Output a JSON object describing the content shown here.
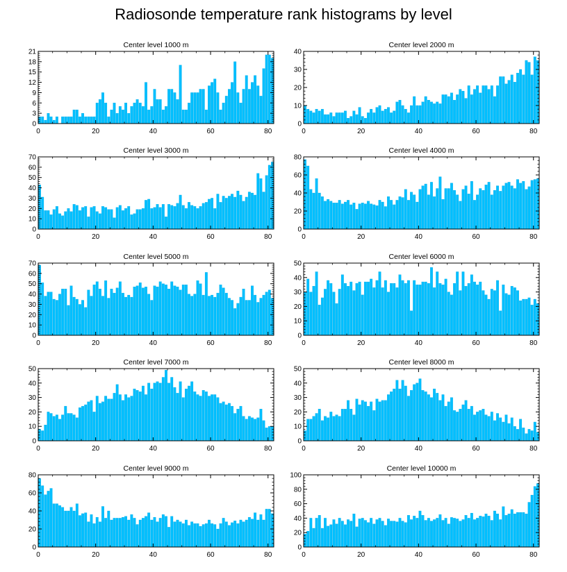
{
  "title": "Radiosonde temperature rank histograms by level",
  "colors": {
    "bar": "#00BFFF",
    "bar_edge": "#00A6E0",
    "axis": "#000000"
  },
  "chart_data": [
    {
      "type": "bar",
      "title": "Center level 1000 m",
      "xlabel": "",
      "ylabel": "",
      "xlim": [
        0,
        82
      ],
      "ylim": [
        0,
        21
      ],
      "yticks": [
        0,
        3,
        6,
        9,
        12,
        15,
        18,
        21
      ],
      "xticks": [
        0,
        20,
        40,
        60,
        80
      ],
      "values": [
        2,
        2,
        1,
        3,
        2,
        1,
        2,
        0,
        2,
        2,
        2,
        2,
        4,
        4,
        2,
        3,
        2,
        2,
        2,
        2,
        6,
        7,
        9,
        6,
        2,
        4,
        6,
        3,
        5,
        4,
        6,
        3,
        5,
        6,
        7,
        6,
        5,
        12,
        4,
        5,
        10,
        7,
        7,
        4,
        5,
        10,
        10,
        9,
        7,
        17,
        4,
        4,
        6,
        9,
        9,
        9,
        10,
        10,
        4,
        11,
        12,
        13,
        9,
        4,
        6,
        8,
        10,
        12,
        18,
        9,
        6,
        10,
        14,
        10,
        12,
        14,
        11,
        8,
        16,
        20,
        20,
        19
      ]
    },
    {
      "type": "bar",
      "title": "Center level 2000 m",
      "xlabel": "",
      "ylabel": "",
      "xlim": [
        0,
        82
      ],
      "ylim": [
        0,
        40
      ],
      "yticks": [
        0,
        10,
        20,
        30,
        40
      ],
      "xticks": [
        0,
        20,
        40,
        60,
        80
      ],
      "values": [
        10,
        8,
        7,
        6,
        8,
        7,
        8,
        5,
        5,
        6,
        4,
        6,
        6,
        6,
        7,
        3,
        4,
        7,
        5,
        9,
        4,
        3,
        6,
        8,
        6,
        9,
        10,
        7,
        8,
        9,
        6,
        7,
        12,
        13,
        10,
        8,
        6,
        10,
        15,
        10,
        10,
        12,
        15,
        13,
        12,
        11,
        12,
        11,
        16,
        16,
        15,
        17,
        13,
        16,
        19,
        18,
        14,
        21,
        16,
        19,
        21,
        17,
        21,
        21,
        19,
        21,
        15,
        21,
        26,
        26,
        22,
        24,
        27,
        23,
        28,
        30,
        27,
        35,
        34,
        27,
        37,
        35
      ]
    },
    {
      "type": "bar",
      "title": "Center level 3000 m",
      "xlabel": "",
      "ylabel": "",
      "xlim": [
        0,
        82
      ],
      "ylim": [
        0,
        70
      ],
      "yticks": [
        0,
        10,
        20,
        30,
        40,
        50,
        60,
        70
      ],
      "xticks": [
        0,
        20,
        40,
        60,
        80
      ],
      "values": [
        43,
        31,
        18,
        18,
        14,
        19,
        22,
        15,
        13,
        17,
        20,
        17,
        24,
        23,
        18,
        21,
        22,
        12,
        21,
        22,
        17,
        15,
        22,
        21,
        19,
        19,
        11,
        21,
        23,
        18,
        20,
        22,
        14,
        15,
        19,
        19,
        20,
        28,
        29,
        20,
        21,
        24,
        21,
        24,
        12,
        24,
        23,
        22,
        25,
        33,
        23,
        20,
        26,
        23,
        22,
        20,
        22,
        25,
        26,
        29,
        30,
        20,
        34,
        26,
        32,
        30,
        32,
        34,
        31,
        37,
        33,
        27,
        31,
        36,
        35,
        33,
        54,
        49,
        36,
        52,
        62,
        65
      ]
    },
    {
      "type": "bar",
      "title": "Center level 4000 m",
      "xlabel": "",
      "ylabel": "",
      "xlim": [
        0,
        82
      ],
      "ylim": [
        0,
        80
      ],
      "yticks": [
        0,
        20,
        40,
        60,
        80
      ],
      "xticks": [
        0,
        20,
        40,
        60,
        80
      ],
      "values": [
        77,
        70,
        44,
        40,
        56,
        40,
        36,
        31,
        33,
        31,
        29,
        29,
        32,
        28,
        30,
        32,
        27,
        29,
        22,
        28,
        29,
        28,
        31,
        28,
        27,
        26,
        32,
        30,
        25,
        36,
        32,
        27,
        32,
        36,
        35,
        44,
        32,
        41,
        38,
        30,
        44,
        48,
        50,
        38,
        52,
        36,
        45,
        58,
        33,
        45,
        45,
        51,
        43,
        38,
        31,
        44,
        48,
        39,
        53,
        32,
        38,
        45,
        43,
        49,
        52,
        38,
        43,
        48,
        42,
        48,
        51,
        52,
        48,
        45,
        55,
        51,
        53,
        44,
        47,
        54,
        55,
        56
      ]
    },
    {
      "type": "bar",
      "title": "Center level 5000 m",
      "xlabel": "",
      "ylabel": "",
      "xlim": [
        0,
        82
      ],
      "ylim": [
        0,
        70
      ],
      "yticks": [
        0,
        10,
        20,
        30,
        40,
        50,
        60,
        70
      ],
      "xticks": [
        0,
        20,
        40,
        60,
        80
      ],
      "values": [
        68,
        51,
        38,
        42,
        42,
        35,
        34,
        40,
        45,
        45,
        29,
        48,
        37,
        35,
        30,
        34,
        27,
        44,
        38,
        49,
        52,
        45,
        38,
        53,
        36,
        45,
        41,
        46,
        52,
        41,
        37,
        39,
        37,
        47,
        48,
        51,
        46,
        47,
        40,
        34,
        48,
        47,
        52,
        50,
        49,
        45,
        52,
        48,
        47,
        44,
        49,
        49,
        40,
        38,
        40,
        53,
        50,
        39,
        61,
        38,
        39,
        37,
        41,
        49,
        46,
        41,
        36,
        34,
        26,
        31,
        37,
        45,
        34,
        34,
        48,
        39,
        32,
        36,
        39,
        42,
        44,
        36
      ]
    },
    {
      "type": "bar",
      "title": "Center level 6000 m",
      "xlabel": "",
      "ylabel": "",
      "xlim": [
        0,
        82
      ],
      "ylim": [
        0,
        50
      ],
      "yticks": [
        0,
        10,
        20,
        30,
        40,
        50
      ],
      "xticks": [
        0,
        20,
        40,
        60,
        80
      ],
      "values": [
        30,
        39,
        30,
        34,
        44,
        21,
        26,
        32,
        38,
        36,
        30,
        22,
        32,
        42,
        36,
        34,
        37,
        31,
        36,
        37,
        28,
        37,
        37,
        39,
        33,
        38,
        44,
        33,
        38,
        30,
        36,
        36,
        33,
        42,
        38,
        36,
        38,
        17,
        38,
        35,
        35,
        37,
        37,
        36,
        47,
        33,
        44,
        36,
        35,
        39,
        30,
        28,
        36,
        44,
        31,
        44,
        34,
        36,
        42,
        37,
        35,
        37,
        31,
        28,
        25,
        32,
        31,
        38,
        17,
        35,
        29,
        28,
        34,
        33,
        31,
        24,
        25,
        25,
        26,
        21,
        25,
        22
      ]
    },
    {
      "type": "bar",
      "title": "Center level 7000 m",
      "xlabel": "",
      "ylabel": "",
      "xlim": [
        0,
        82
      ],
      "ylim": [
        0,
        50
      ],
      "yticks": [
        0,
        10,
        20,
        30,
        40,
        50
      ],
      "xticks": [
        0,
        20,
        40,
        60,
        80
      ],
      "values": [
        8,
        7,
        11,
        20,
        19,
        17,
        18,
        15,
        18,
        24,
        19,
        19,
        18,
        16,
        23,
        24,
        25,
        27,
        28,
        20,
        31,
        26,
        27,
        31,
        29,
        29,
        33,
        39,
        32,
        28,
        32,
        30,
        31,
        36,
        35,
        34,
        38,
        32,
        40,
        36,
        40,
        41,
        40,
        44,
        49,
        40,
        44,
        37,
        33,
        41,
        30,
        36,
        38,
        41,
        34,
        32,
        31,
        35,
        34,
        31,
        32,
        32,
        30,
        26,
        27,
        25,
        26,
        24,
        19,
        22,
        24,
        17,
        15,
        17,
        16,
        15,
        16,
        22,
        14,
        9,
        10,
        10
      ]
    },
    {
      "type": "bar",
      "title": "Center level 8000 m",
      "xlabel": "",
      "ylabel": "",
      "xlim": [
        0,
        82
      ],
      "ylim": [
        0,
        50
      ],
      "yticks": [
        0,
        10,
        20,
        30,
        40,
        50
      ],
      "xticks": [
        0,
        20,
        40,
        60,
        80
      ],
      "values": [
        7,
        15,
        15,
        17,
        19,
        22,
        14,
        17,
        16,
        20,
        17,
        18,
        17,
        22,
        22,
        28,
        22,
        18,
        29,
        25,
        28,
        27,
        24,
        27,
        21,
        29,
        27,
        28,
        28,
        32,
        34,
        36,
        42,
        36,
        42,
        38,
        31,
        35,
        39,
        40,
        43,
        35,
        34,
        32,
        30,
        36,
        33,
        28,
        32,
        24,
        27,
        30,
        21,
        20,
        22,
        25,
        28,
        22,
        24,
        18,
        20,
        21,
        22,
        18,
        17,
        20,
        14,
        19,
        16,
        13,
        18,
        12,
        16,
        10,
        8,
        15,
        9,
        5,
        8,
        7,
        13,
        6
      ]
    },
    {
      "type": "bar",
      "title": "Center level 9000 m",
      "xlabel": "",
      "ylabel": "",
      "xlim": [
        0,
        82
      ],
      "ylim": [
        0,
        80
      ],
      "yticks": [
        0,
        20,
        40,
        60,
        80
      ],
      "xticks": [
        0,
        20,
        40,
        60,
        80
      ],
      "values": [
        76,
        68,
        58,
        62,
        65,
        48,
        48,
        46,
        44,
        40,
        40,
        44,
        40,
        48,
        35,
        37,
        38,
        28,
        36,
        26,
        33,
        28,
        45,
        32,
        40,
        30,
        32,
        32,
        32,
        33,
        34,
        30,
        36,
        32,
        25,
        30,
        32,
        34,
        38,
        30,
        33,
        28,
        32,
        36,
        34,
        22,
        34,
        28,
        30,
        28,
        26,
        30,
        24,
        28,
        26,
        26,
        23,
        25,
        26,
        30,
        26,
        25,
        20,
        26,
        32,
        28,
        24,
        27,
        29,
        26,
        30,
        28,
        30,
        33,
        31,
        38,
        30,
        36,
        30,
        42,
        42,
        37
      ]
    },
    {
      "type": "bar",
      "title": "Center level 10000 m",
      "xlabel": "",
      "ylabel": "",
      "xlim": [
        0,
        82
      ],
      "ylim": [
        0,
        100
      ],
      "yticks": [
        0,
        20,
        40,
        60,
        80,
        100
      ],
      "xticks": [
        0,
        20,
        40,
        60,
        80
      ],
      "values": [
        18,
        22,
        40,
        26,
        40,
        44,
        26,
        40,
        29,
        31,
        38,
        32,
        40,
        36,
        31,
        38,
        36,
        46,
        28,
        39,
        40,
        37,
        34,
        40,
        32,
        38,
        40,
        36,
        30,
        39,
        36,
        36,
        35,
        40,
        36,
        34,
        44,
        38,
        43,
        40,
        50,
        44,
        37,
        40,
        36,
        38,
        40,
        45,
        37,
        40,
        32,
        41,
        40,
        39,
        36,
        38,
        44,
        40,
        47,
        38,
        40,
        43,
        42,
        46,
        43,
        37,
        50,
        46,
        38,
        56,
        44,
        46,
        52,
        46,
        48,
        48,
        48,
        46,
        62,
        72,
        84,
        88
      ]
    }
  ]
}
